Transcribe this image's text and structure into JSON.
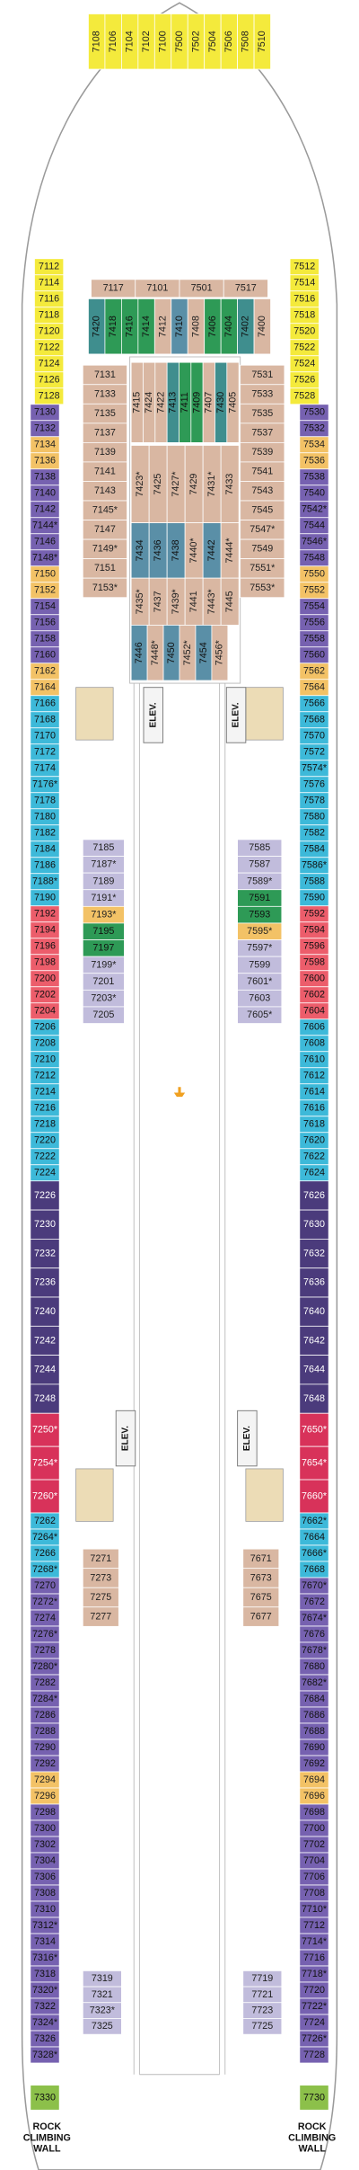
{
  "palette": {
    "yellow": {
      "fill": "#f4ea3c",
      "text": "#222"
    },
    "purple": {
      "fill": "#7661b0",
      "text": "#111"
    },
    "orange": {
      "fill": "#f3c266",
      "text": "#222"
    },
    "cyan": {
      "fill": "#3db9d9",
      "text": "#111"
    },
    "pink": {
      "fill": "#ec5d6b",
      "text": "#111"
    },
    "darkpurple": {
      "fill": "#4b3b7c",
      "text": "#fff"
    },
    "red": {
      "fill": "#d8325a",
      "text": "#fff"
    },
    "green": {
      "fill": "#8cc04a",
      "text": "#111"
    },
    "tan": {
      "fill": "#d9b7a2",
      "text": "#222"
    },
    "teal": {
      "fill": "#3f8e8e",
      "text": "#111"
    },
    "jade": {
      "fill": "#2e9a56",
      "text": "#111"
    },
    "slate": {
      "fill": "#5a8fa7",
      "text": "#111"
    },
    "lavender": {
      "fill": "#c1bcdc",
      "text": "#222"
    }
  },
  "port_column": [
    {
      "color": "yellow",
      "cabins": [
        "7112",
        "7114",
        "7116",
        "7118",
        "7120",
        "7122",
        "7124",
        "7126",
        "7128"
      ]
    },
    {
      "color": "purple",
      "cabins": [
        "7130",
        "7132"
      ]
    },
    {
      "color": "orange",
      "cabins": [
        "7134",
        "7136"
      ]
    },
    {
      "color": "purple",
      "cabins": [
        "7138",
        "7140",
        "7142",
        "7144*",
        "7146",
        "7148*"
      ]
    },
    {
      "color": "orange",
      "cabins": [
        "7150",
        "7152"
      ]
    },
    {
      "color": "purple",
      "cabins": [
        "7154",
        "7156",
        "7158",
        "7160"
      ]
    },
    {
      "color": "orange",
      "cabins": [
        "7162",
        "7164"
      ]
    },
    {
      "color": "cyan",
      "cabins": [
        "7166",
        "7168",
        "7170",
        "7172",
        "7174",
        "7176*",
        "7178",
        "7180",
        "7182",
        "7184",
        "7186",
        "7188*",
        "7190"
      ]
    },
    {
      "color": "pink",
      "cabins": [
        "7192",
        "7194",
        "7196",
        "7198",
        "7200",
        "7202",
        "7204"
      ]
    },
    {
      "color": "cyan",
      "cabins": [
        "7206",
        "7208",
        "7210",
        "7212",
        "7214",
        "7216",
        "7218",
        "7220",
        "7222",
        "7224"
      ]
    },
    {
      "color": "darkpurple",
      "cabins": [
        "7226",
        "7230",
        "7232",
        "7236",
        "7240",
        "7242",
        "7244",
        "7248"
      ]
    },
    {
      "color": "red",
      "cabins": [
        "7250*",
        "7254*",
        "7260*"
      ]
    },
    {
      "color": "cyan",
      "cabins": [
        "7262",
        "7264*",
        "7266",
        "7268*"
      ]
    },
    {
      "color": "purple",
      "cabins": [
        "7270",
        "7272*",
        "7274",
        "7276*",
        "7278",
        "7280*",
        "7282",
        "7284*",
        "7286",
        "7288",
        "7290",
        "7292"
      ]
    },
    {
      "color": "orange",
      "cabins": [
        "7294",
        "7296"
      ]
    },
    {
      "color": "purple",
      "cabins": [
        "7298",
        "7300",
        "7302",
        "7304",
        "7306",
        "7308",
        "7310",
        "7312*",
        "7314",
        "7316*",
        "7318",
        "7320*",
        "7322",
        "7324*",
        "7326",
        "7328*"
      ]
    },
    {
      "color": "green",
      "cabins": [
        "7330"
      ]
    }
  ],
  "starboard_column": [
    {
      "color": "yellow",
      "cabins": [
        "7512",
        "7514",
        "7516",
        "7518",
        "7520",
        "7522",
        "7524",
        "7526",
        "7528"
      ]
    },
    {
      "color": "purple",
      "cabins": [
        "7530",
        "7532"
      ]
    },
    {
      "color": "orange",
      "cabins": [
        "7534",
        "7536"
      ]
    },
    {
      "color": "purple",
      "cabins": [
        "7538",
        "7540",
        "7542*",
        "7544",
        "7546*",
        "7548"
      ]
    },
    {
      "color": "orange",
      "cabins": [
        "7550",
        "7552"
      ]
    },
    {
      "color": "purple",
      "cabins": [
        "7554",
        "7556",
        "7558",
        "7560"
      ]
    },
    {
      "color": "orange",
      "cabins": [
        "7562",
        "7564"
      ]
    },
    {
      "color": "cyan",
      "cabins": [
        "7566",
        "7568",
        "7570",
        "7572",
        "7574*",
        "7576",
        "7578",
        "7580",
        "7582",
        "7584",
        "7586*",
        "7588",
        "7590"
      ]
    },
    {
      "color": "pink",
      "cabins": [
        "7592",
        "7594",
        "7596",
        "7598",
        "7600",
        "7602",
        "7604"
      ]
    },
    {
      "color": "cyan",
      "cabins": [
        "7606",
        "7608",
        "7610",
        "7612",
        "7614",
        "7616",
        "7618",
        "7620",
        "7622",
        "7624"
      ]
    },
    {
      "color": "darkpurple",
      "cabins": [
        "7626",
        "7630",
        "7632",
        "7636",
        "7640",
        "7642",
        "7644",
        "7648"
      ]
    },
    {
      "color": "red",
      "cabins": [
        "7650*",
        "7654*",
        "7660*"
      ]
    },
    {
      "color": "cyan",
      "cabins": [
        "7662*",
        "7664",
        "7666*",
        "7668"
      ]
    },
    {
      "color": "purple",
      "cabins": [
        "7670*",
        "7672",
        "7674*",
        "7676",
        "7678*",
        "7680",
        "7682*",
        "7684",
        "7686",
        "7688",
        "7690",
        "7692"
      ]
    },
    {
      "color": "orange",
      "cabins": [
        "7694",
        "7696"
      ]
    },
    {
      "color": "purple",
      "cabins": [
        "7698",
        "7700",
        "7702",
        "7704",
        "7706",
        "7708",
        "7710*",
        "7712",
        "7714*",
        "7716",
        "7718*",
        "7720",
        "7722*",
        "7724",
        "7726*",
        "7728"
      ]
    },
    {
      "color": "green",
      "cabins": [
        "7730"
      ]
    }
  ],
  "inner_blocks": [
    {
      "cabins": [
        {
          "label": "7108",
          "color": "yellow"
        },
        {
          "label": "7106",
          "color": "yellow"
        },
        {
          "label": "7104",
          "color": "yellow"
        },
        {
          "label": "7102",
          "color": "yellow"
        },
        {
          "label": "7100",
          "color": "yellow"
        },
        {
          "label": "7500",
          "color": "yellow"
        },
        {
          "label": "7502",
          "color": "yellow"
        },
        {
          "label": "7504",
          "color": "yellow"
        },
        {
          "label": "7506",
          "color": "yellow"
        },
        {
          "label": "7508",
          "color": "yellow"
        },
        {
          "label": "7510",
          "color": "yellow"
        }
      ]
    },
    {
      "cabins": [
        {
          "label": "7117",
          "color": "tan"
        },
        {
          "label": "7101",
          "color": "tan"
        },
        {
          "label": "7501",
          "color": "tan"
        },
        {
          "label": "7517",
          "color": "tan"
        }
      ]
    },
    {
      "cabins": [
        {
          "label": "7420",
          "color": "teal"
        },
        {
          "label": "7418",
          "color": "jade"
        },
        {
          "label": "7416",
          "color": "jade"
        },
        {
          "label": "7414",
          "color": "jade"
        },
        {
          "label": "7412",
          "color": "tan"
        },
        {
          "label": "7410",
          "color": "slate"
        },
        {
          "label": "7408",
          "color": "tan"
        },
        {
          "label": "7406",
          "color": "jade"
        },
        {
          "label": "7404",
          "color": "jade"
        },
        {
          "label": "7402",
          "color": "teal"
        },
        {
          "label": "7400",
          "color": "tan"
        }
      ]
    },
    {
      "cabins": [
        {
          "label": "7131",
          "color": "tan"
        },
        {
          "label": "7133",
          "color": "tan"
        },
        {
          "label": "7135",
          "color": "tan"
        },
        {
          "label": "7137",
          "color": "tan"
        },
        {
          "label": "7139",
          "color": "tan"
        },
        {
          "label": "7141",
          "color": "tan"
        },
        {
          "label": "7143",
          "color": "tan"
        },
        {
          "label": "7145*",
          "color": "tan"
        },
        {
          "label": "7147",
          "color": "tan"
        },
        {
          "label": "7149*",
          "color": "tan"
        },
        {
          "label": "7151",
          "color": "tan"
        },
        {
          "label": "7153*",
          "color": "tan"
        }
      ]
    },
    {
      "cabins": [
        {
          "label": "7531",
          "color": "tan"
        },
        {
          "label": "7533",
          "color": "tan"
        },
        {
          "label": "7535",
          "color": "tan"
        },
        {
          "label": "7537",
          "color": "tan"
        },
        {
          "label": "7539",
          "color": "tan"
        },
        {
          "label": "7541",
          "color": "tan"
        },
        {
          "label": "7543",
          "color": "tan"
        },
        {
          "label": "7545",
          "color": "tan"
        },
        {
          "label": "7547*",
          "color": "tan"
        },
        {
          "label": "7549",
          "color": "tan"
        },
        {
          "label": "7551*",
          "color": "tan"
        },
        {
          "label": "7553*",
          "color": "tan"
        }
      ]
    },
    {
      "cabins": [
        {
          "label": "7415",
          "color": "tan"
        },
        {
          "label": "7424",
          "color": "tan"
        },
        {
          "label": "7422",
          "color": "tan"
        },
        {
          "label": "7413",
          "color": "teal"
        },
        {
          "label": "7411",
          "color": "jade"
        },
        {
          "label": "7409",
          "color": "jade"
        },
        {
          "label": "7407",
          "color": "tan"
        },
        {
          "label": "7430",
          "color": "teal"
        },
        {
          "label": "7405",
          "color": "tan"
        }
      ]
    },
    {
      "cabins": [
        {
          "label": "7423*",
          "color": "tan"
        },
        {
          "label": "7425",
          "color": "tan"
        },
        {
          "label": "7427*",
          "color": "tan"
        },
        {
          "label": "7429",
          "color": "tan"
        },
        {
          "label": "7431*",
          "color": "tan"
        },
        {
          "label": "7433",
          "color": "tan"
        }
      ]
    },
    {
      "cabins": [
        {
          "label": "7434",
          "color": "slate"
        },
        {
          "label": "7436",
          "color": "slate"
        },
        {
          "label": "7438",
          "color": "slate"
        },
        {
          "label": "7440*",
          "color": "tan"
        },
        {
          "label": "7442",
          "color": "slate"
        },
        {
          "label": "7444*",
          "color": "tan"
        }
      ]
    },
    {
      "cabins": [
        {
          "label": "7435*",
          "color": "tan"
        },
        {
          "label": "7437",
          "color": "tan"
        },
        {
          "label": "7439*",
          "color": "tan"
        },
        {
          "label": "7441",
          "color": "tan"
        },
        {
          "label": "7443*",
          "color": "tan"
        },
        {
          "label": "7445",
          "color": "tan"
        }
      ]
    },
    {
      "cabins": [
        {
          "label": "7446",
          "color": "slate"
        },
        {
          "label": "7448*",
          "color": "tan"
        },
        {
          "label": "7450",
          "color": "slate"
        },
        {
          "label": "7452*",
          "color": "tan"
        },
        {
          "label": "7454",
          "color": "slate"
        },
        {
          "label": "7456*",
          "color": "tan"
        }
      ]
    },
    {
      "cabins": [
        {
          "label": "7185",
          "color": "lavender"
        },
        {
          "label": "7187*",
          "color": "lavender"
        },
        {
          "label": "7189",
          "color": "lavender"
        },
        {
          "label": "7191*",
          "color": "lavender"
        },
        {
          "label": "7193*",
          "color": "orange"
        },
        {
          "label": "7195",
          "color": "jade"
        },
        {
          "label": "7197",
          "color": "jade"
        },
        {
          "label": "7199*",
          "color": "lavender"
        },
        {
          "label": "7201",
          "color": "lavender"
        },
        {
          "label": "7203*",
          "color": "lavender"
        },
        {
          "label": "7205",
          "color": "lavender"
        }
      ]
    },
    {
      "cabins": [
        {
          "label": "7585",
          "color": "lavender"
        },
        {
          "label": "7587",
          "color": "lavender"
        },
        {
          "label": "7589*",
          "color": "lavender"
        },
        {
          "label": "7591",
          "color": "jade"
        },
        {
          "label": "7593",
          "color": "jade"
        },
        {
          "label": "7595*",
          "color": "orange"
        },
        {
          "label": "7597*",
          "color": "lavender"
        },
        {
          "label": "7599",
          "color": "lavender"
        },
        {
          "label": "7601*",
          "color": "lavender"
        },
        {
          "label": "7603",
          "color": "lavender"
        },
        {
          "label": "7605*",
          "color": "lavender"
        }
      ]
    },
    {
      "cabins": [
        {
          "label": "7271",
          "color": "tan"
        },
        {
          "label": "7273",
          "color": "tan"
        },
        {
          "label": "7275",
          "color": "tan"
        },
        {
          "label": "7277",
          "color": "tan"
        }
      ]
    },
    {
      "cabins": [
        {
          "label": "7671",
          "color": "tan"
        },
        {
          "label": "7673",
          "color": "tan"
        },
        {
          "label": "7675",
          "color": "tan"
        },
        {
          "label": "7677",
          "color": "tan"
        }
      ]
    },
    {
      "cabins": [
        {
          "label": "7319",
          "color": "lavender"
        },
        {
          "label": "7321",
          "color": "lavender"
        },
        {
          "label": "7323*",
          "color": "lavender"
        },
        {
          "label": "7325",
          "color": "lavender"
        }
      ]
    },
    {
      "cabins": [
        {
          "label": "7719",
          "color": "lavender"
        },
        {
          "label": "7721",
          "color": "lavender"
        },
        {
          "label": "7723",
          "color": "lavender"
        },
        {
          "label": "7725",
          "color": "lavender"
        }
      ]
    }
  ],
  "elevators": [
    "ELEV.",
    "ELEV.",
    "ELEV.",
    "ELEV."
  ],
  "rock_walls": [
    [
      "ROCK",
      "CLIMBING",
      "WALL"
    ],
    [
      "ROCK",
      "CLIMBING",
      "WALL"
    ]
  ]
}
